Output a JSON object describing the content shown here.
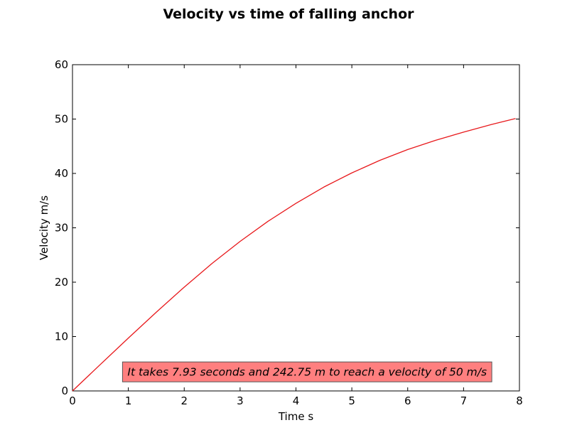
{
  "chart_data": {
    "type": "line",
    "title": "Velocity vs time of falling anchor",
    "xlabel": "Time s",
    "ylabel": "Velocity m/s",
    "xlim": [
      0,
      8
    ],
    "ylim": [
      0,
      60
    ],
    "xticks": [
      0,
      1,
      2,
      3,
      4,
      5,
      6,
      7,
      8
    ],
    "yticks": [
      0,
      10,
      20,
      30,
      40,
      50,
      60
    ],
    "grid": false,
    "series": [
      {
        "color": "#e8191c",
        "x": [
          0,
          0.5,
          1,
          1.5,
          2,
          2.5,
          3,
          3.5,
          4,
          4.5,
          5,
          5.5,
          6,
          6.5,
          7,
          7.5,
          7.93
        ],
        "y": [
          0,
          4.88,
          9.72,
          14.48,
          19.09,
          23.46,
          27.5,
          31.2,
          34.5,
          37.5,
          40.1,
          42.4,
          44.4,
          46.1,
          47.6,
          49.0,
          50.1
        ]
      }
    ],
    "annotation": {
      "text": "It takes 7.93 seconds and 242.75 m to reach a  velocity of 50 m/s",
      "background": "#ff7f7f",
      "border": "#555555",
      "x_center": 4.2,
      "y_center": 3.5
    }
  }
}
